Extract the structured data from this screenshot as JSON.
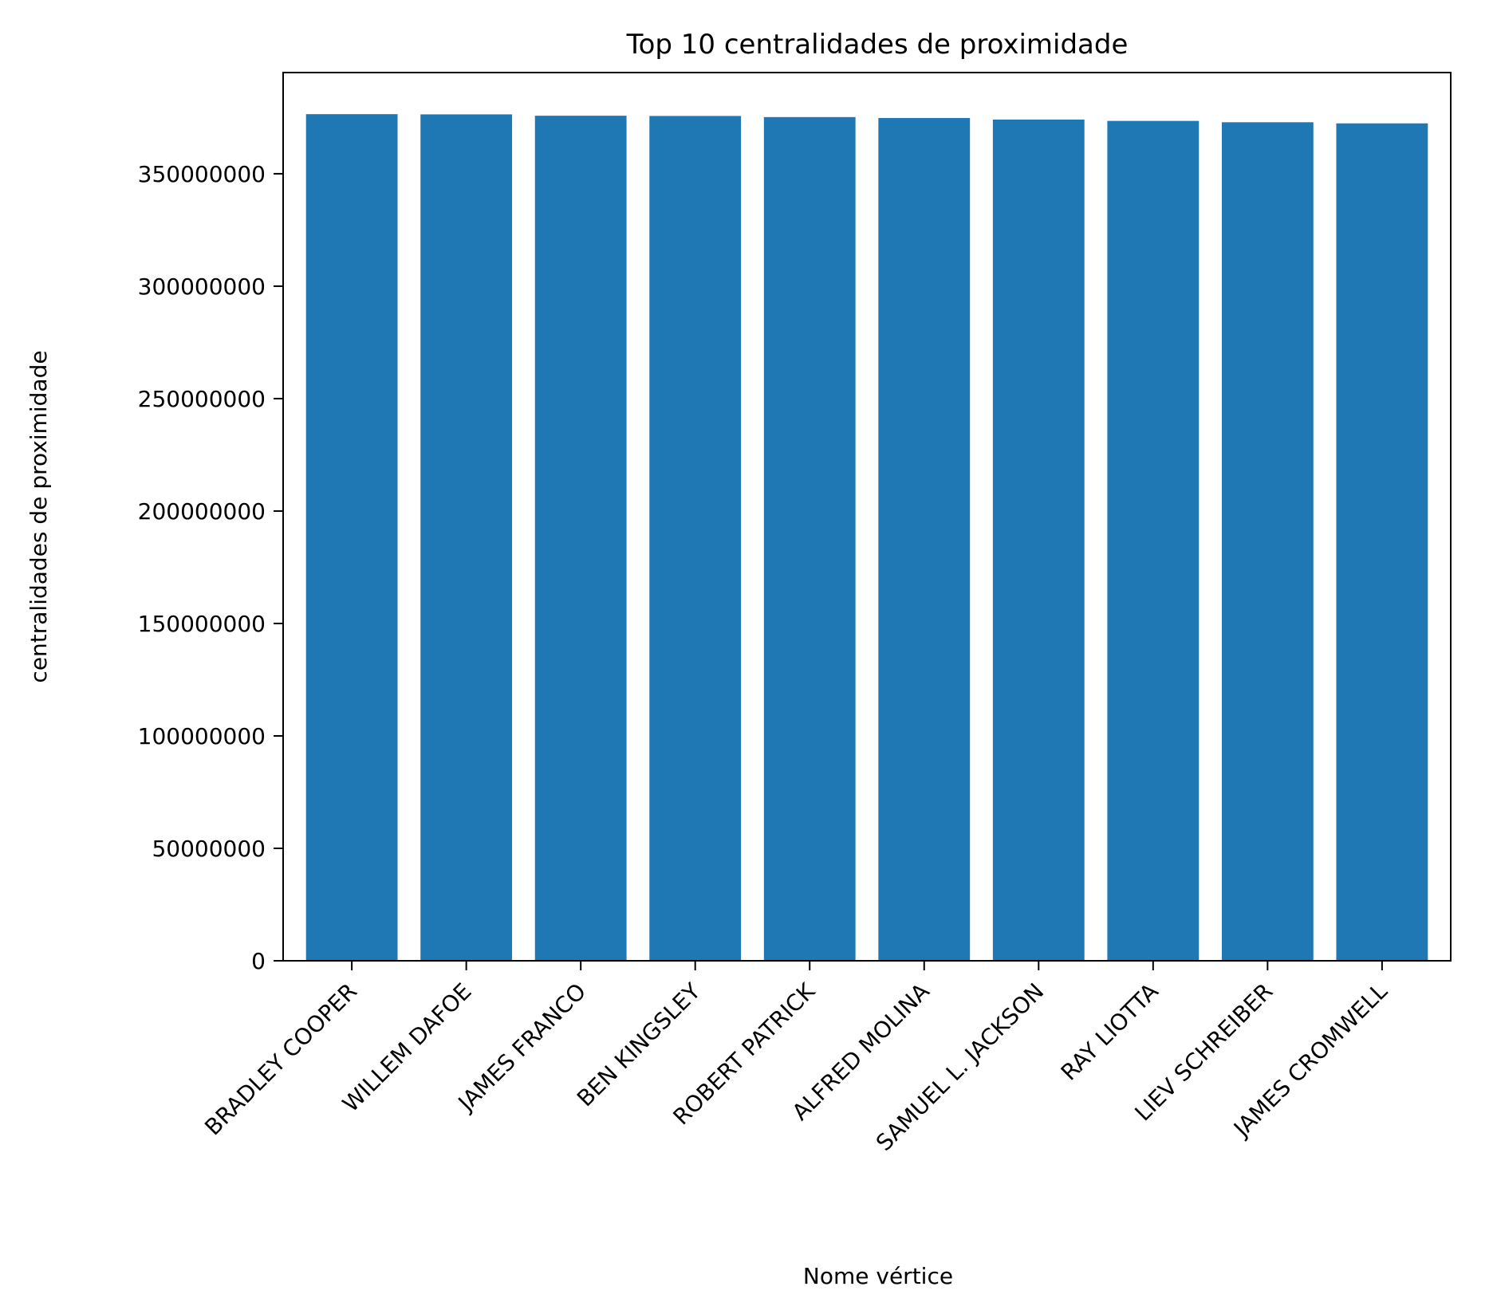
{
  "chart_data": {
    "type": "bar",
    "title": "Top 10 centralidades de proximidade",
    "xlabel": "Nome vértice",
    "ylabel": "centralidades de proximidade",
    "categories": [
      "BRADLEY COOPER",
      "WILLEM DAFOE",
      "JAMES FRANCO",
      "BEN KINGSLEY",
      "ROBERT PATRICK",
      "ALFRED MOLINA",
      "SAMUEL L. JACKSON",
      "RAY LIOTTA",
      "LIEV SCHREIBER",
      "JAMES CROMWELL"
    ],
    "values": [
      376500000,
      376400000,
      375800000,
      375700000,
      375200000,
      374800000,
      374100000,
      373500000,
      372900000,
      372400000
    ],
    "ylim": [
      0,
      395000000
    ],
    "yticks": [
      0,
      50000000,
      100000000,
      150000000,
      200000000,
      250000000,
      300000000,
      350000000
    ],
    "ytick_labels": [
      "0",
      "50000000",
      "100000000",
      "150000000",
      "200000000",
      "250000000",
      "300000000",
      "350000000"
    ],
    "grid": false,
    "bar_color": "#1f77b4"
  }
}
